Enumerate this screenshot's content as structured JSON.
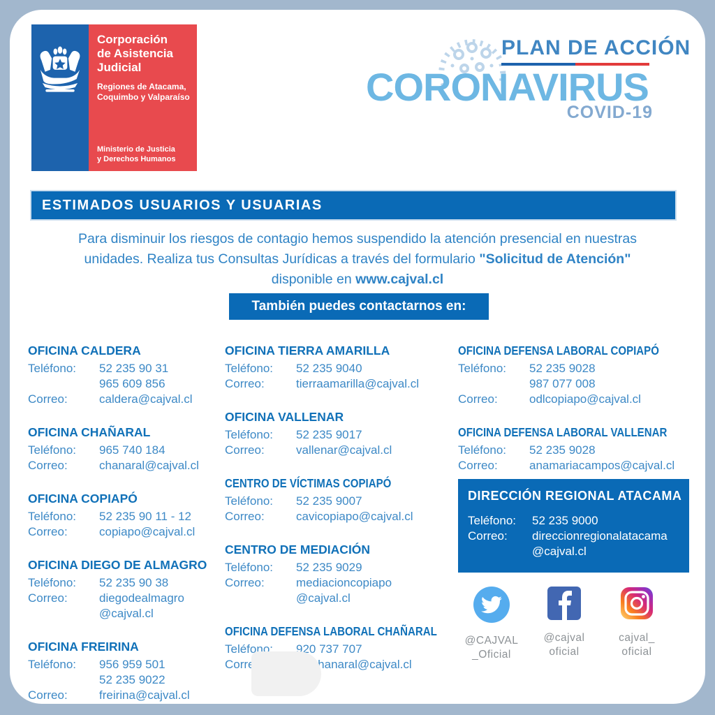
{
  "logo": {
    "title_lines": [
      "Corporación",
      "de Asistencia",
      "Judicial"
    ],
    "subtitle_lines": [
      "Regiones de Atacama,",
      "Coquimbo y Valparaíso"
    ],
    "footer_lines": [
      "Ministerio de Justicia",
      "y Derechos Humanos"
    ],
    "blue": "#1d63ad",
    "red": "#e84a4e"
  },
  "header_right": {
    "plan_label": "PLAN DE ACCIÓN",
    "title": "CORONAVIRUS",
    "subtitle": "COVID-19",
    "title_color": "#6db7e3"
  },
  "banner": {
    "text": "ESTIMADOS USUARIOS Y USUARIAS",
    "color": "#0a6ab6"
  },
  "intro": {
    "line1": "Para disminuir los riesgos de contagio hemos suspendido la atención presencial en nuestras",
    "line2_normal": "unidades. Realiza tus Consultas Jurídicas a través del formulario ",
    "line2_bold": "\"Solicitud de Atención\"",
    "line3_normal": "disponible en  ",
    "line3_bold": "www.cajval.cl"
  },
  "contact_cta": "También puedes contactarnos en:",
  "labels": {
    "phone": "Teléfono:",
    "email": "Correo:"
  },
  "columns": [
    [
      {
        "name": "OFICINA CALDERA",
        "phone_lines": [
          "52 235 90 31",
          "965 609 856"
        ],
        "email_lines": [
          "caldera@cajval.cl"
        ]
      },
      {
        "name": "OFICINA CHAÑARAL",
        "phone_lines": [
          "965 740 184"
        ],
        "email_lines": [
          "chanaral@cajval.cl"
        ]
      },
      {
        "name": "OFICINA COPIAPÓ",
        "phone_lines": [
          "52 235 90 11 - 12"
        ],
        "email_lines": [
          "copiapo@cajval.cl"
        ]
      },
      {
        "name": "OFICINA DIEGO DE ALMAGRO",
        "phone_lines": [
          "52 235 90 38"
        ],
        "email_lines": [
          "diegodealmagro",
          "@cajval.cl"
        ]
      },
      {
        "name": "OFICINA FREIRINA",
        "phone_lines": [
          "956 959 501",
          "52 235 9022"
        ],
        "email_lines": [
          "freirina@cajval.cl"
        ]
      }
    ],
    [
      {
        "name": "OFICINA TIERRA AMARILLA",
        "phone_lines": [
          "52 235 9040"
        ],
        "email_lines": [
          "tierraamarilla@cajval.cl"
        ]
      },
      {
        "name": "OFICINA VALLENAR",
        "phone_lines": [
          "52 235 9017"
        ],
        "email_lines": [
          "vallenar@cajval.cl"
        ]
      },
      {
        "name": "CENTRO DE VÍCTIMAS COPIAPÓ",
        "phone_lines": [
          "52 235 9007"
        ],
        "email_lines": [
          "cavicopiapo@cajval.cl"
        ]
      },
      {
        "name": "CENTRO DE MEDIACIÓN",
        "phone_lines": [
          "52 235 9029"
        ],
        "email_lines": [
          "mediacioncopiapo",
          "@cajval.cl"
        ]
      },
      {
        "name": "OFICINA DEFENSA LABORAL  CHAÑARAL",
        "phone_lines": [
          "920 737 707"
        ],
        "email_lines": [
          "odlchanaral@cajval.cl"
        ]
      }
    ],
    [
      {
        "name": "OFICINA DEFENSA LABORAL COPIAPÓ",
        "phone_lines": [
          "52 235 9028",
          "987 077 008"
        ],
        "email_lines": [
          "odlcopiapo@cajval.cl"
        ]
      },
      {
        "name": "OFICINA DEFENSA LABORAL VALLENAR",
        "phone_lines": [
          "52 235 9028"
        ],
        "email_lines": [
          "anamariacampos@cajval.cl"
        ]
      }
    ]
  ],
  "regional": {
    "name": "DIRECCIÓN REGIONAL ATACAMA",
    "phone_lines": [
      "52 235 9000"
    ],
    "email_lines": [
      "direccionregionalatacama",
      "@cajval.cl"
    ]
  },
  "social": [
    {
      "network": "twitter",
      "handle_line1": "@CAJVAL",
      "handle_line2": "_Oficial",
      "color": "#55acee"
    },
    {
      "network": "facebook",
      "handle_line1": "@cajval",
      "handle_line2": "oficial",
      "color": "#4267b2"
    },
    {
      "network": "instagram",
      "handle_line1": "cajval_",
      "handle_line2": "oficial",
      "color": "#d62976"
    }
  ],
  "colors": {
    "frame": "#a2b7cd",
    "accent_blue": "#0a6ab6",
    "text_blue": "#3d89c6",
    "title_blue": "#1171b8"
  }
}
